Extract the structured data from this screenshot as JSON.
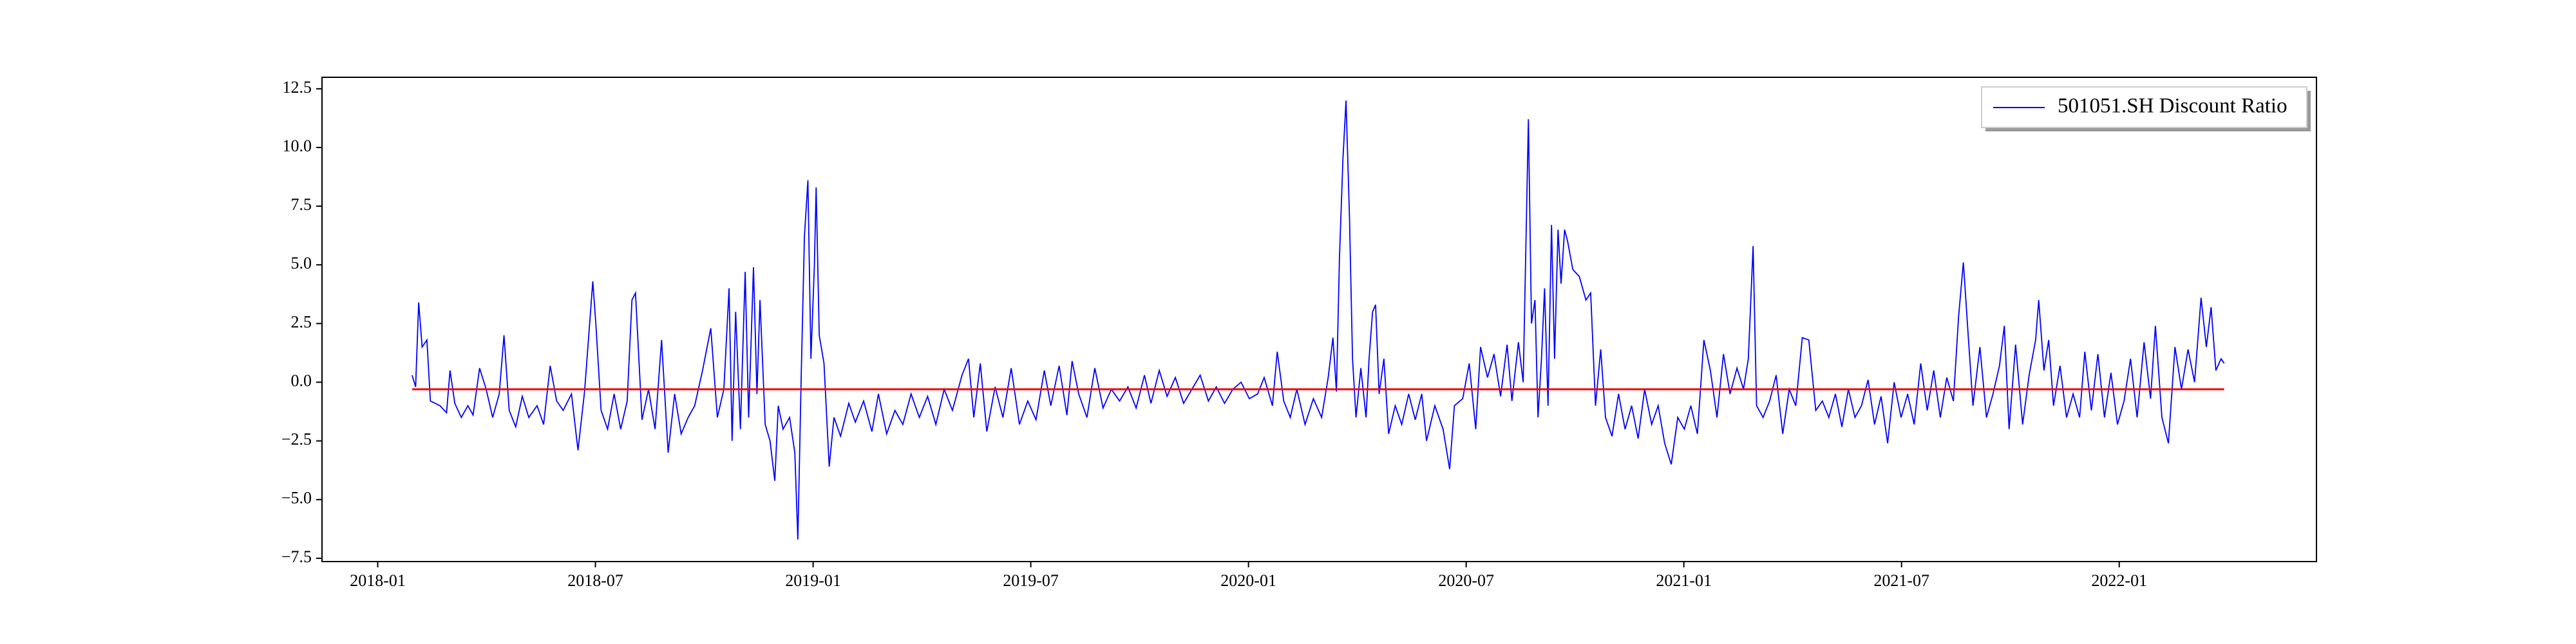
{
  "chart_data": {
    "type": "line",
    "x": [
      2018.079,
      2018.087,
      2018.094,
      2018.102,
      2018.113,
      2018.121,
      2018.143,
      2018.158,
      2018.166,
      2018.177,
      2018.192,
      2018.207,
      2018.219,
      2018.234,
      2018.249,
      2018.264,
      2018.279,
      2018.29,
      2018.302,
      2018.317,
      2018.332,
      2018.347,
      2018.366,
      2018.381,
      2018.396,
      2018.411,
      2018.426,
      2018.445,
      2018.46,
      2018.475,
      2018.494,
      2018.501,
      2018.513,
      2018.528,
      2018.543,
      2018.558,
      2018.573,
      2018.584,
      2018.592,
      2018.607,
      2018.622,
      2018.637,
      2018.652,
      2018.667,
      2018.682,
      2018.697,
      2018.713,
      2018.728,
      2018.746,
      2018.765,
      2018.78,
      2018.795,
      2018.807,
      2018.814,
      2018.822,
      2018.833,
      2018.844,
      2018.852,
      2018.863,
      2018.871,
      2018.878,
      2018.89,
      2018.901,
      2018.912,
      2018.92,
      2018.931,
      2018.946,
      2018.958,
      2018.965,
      2018.973,
      2018.98,
      2018.988,
      2018.995,
      2019.003,
      2019.007,
      2019.014,
      2019.025,
      2019.037,
      2019.048,
      2019.063,
      2019.082,
      2019.097,
      2019.116,
      2019.135,
      2019.15,
      2019.169,
      2019.188,
      2019.206,
      2019.225,
      2019.244,
      2019.263,
      2019.282,
      2019.301,
      2019.32,
      2019.342,
      2019.357,
      2019.369,
      2019.384,
      2019.399,
      2019.418,
      2019.436,
      2019.455,
      2019.474,
      2019.493,
      2019.512,
      2019.531,
      2019.546,
      2019.565,
      2019.583,
      2019.595,
      2019.61,
      2019.629,
      2019.647,
      2019.666,
      2019.685,
      2019.704,
      2019.723,
      2019.742,
      2019.761,
      2019.776,
      2019.795,
      2019.813,
      2019.832,
      2019.851,
      2019.87,
      2019.889,
      2019.908,
      2019.926,
      2019.945,
      2019.964,
      2019.983,
      2020.002,
      2020.021,
      2020.036,
      2020.055,
      2020.066,
      2020.081,
      2020.096,
      2020.111,
      2020.13,
      2020.149,
      2020.168,
      2020.183,
      2020.194,
      2020.202,
      2020.209,
      2020.217,
      2020.224,
      2020.232,
      2020.239,
      2020.247,
      2020.258,
      2020.27,
      2020.277,
      2020.285,
      2020.292,
      2020.3,
      2020.311,
      2020.322,
      2020.337,
      2020.352,
      2020.368,
      2020.383,
      2020.398,
      2020.409,
      2020.428,
      2020.447,
      2020.462,
      2020.473,
      2020.492,
      2020.507,
      2020.522,
      2020.533,
      2020.549,
      2020.564,
      2020.579,
      2020.594,
      2020.605,
      2020.62,
      2020.631,
      2020.643,
      2020.65,
      2020.658,
      2020.665,
      2020.673,
      2020.68,
      2020.688,
      2020.696,
      2020.703,
      2020.711,
      2020.718,
      2020.726,
      2020.733,
      2020.745,
      2020.76,
      2020.775,
      2020.786,
      2020.797,
      2020.809,
      2020.82,
      2020.835,
      2020.85,
      2020.865,
      2020.88,
      2020.895,
      2020.91,
      2020.926,
      2020.941,
      2020.956,
      2020.971,
      2020.986,
      2021.001,
      2021.016,
      2021.031,
      2021.046,
      2021.061,
      2021.076,
      2021.091,
      2021.106,
      2021.122,
      2021.137,
      2021.148,
      2021.159,
      2021.167,
      2021.182,
      2021.197,
      2021.212,
      2021.227,
      2021.242,
      2021.257,
      2021.272,
      2021.287,
      2021.303,
      2021.318,
      2021.333,
      2021.348,
      2021.363,
      2021.378,
      2021.393,
      2021.408,
      2021.423,
      2021.438,
      2021.453,
      2021.468,
      2021.483,
      2021.499,
      2021.514,
      2021.529,
      2021.544,
      2021.559,
      2021.574,
      2021.589,
      2021.604,
      2021.619,
      2021.631,
      2021.642,
      2021.653,
      2021.664,
      2021.68,
      2021.695,
      2021.71,
      2021.725,
      2021.736,
      2021.747,
      2021.762,
      2021.778,
      2021.793,
      2021.808,
      2021.815,
      2021.827,
      2021.838,
      2021.849,
      2021.864,
      2021.879,
      2021.894,
      2021.909,
      2021.921,
      2021.936,
      2021.951,
      2021.966,
      2021.981,
      2021.996,
      2022.011,
      2022.026,
      2022.041,
      2022.057,
      2022.072,
      2022.083,
      2022.098,
      2022.113,
      2022.128,
      2022.143,
      2022.158,
      2022.173,
      2022.188,
      2022.2,
      2022.211,
      2022.222,
      2022.234,
      2022.241
    ],
    "series": [
      {
        "name": "501051.SH Discount Ratio",
        "color": "#0000ff",
        "values": [
          0.3,
          -0.2,
          3.4,
          1.5,
          1.8,
          -0.8,
          -1.0,
          -1.3,
          0.5,
          -0.9,
          -1.5,
          -1.0,
          -1.4,
          0.6,
          -0.3,
          -1.5,
          -0.5,
          2.0,
          -1.2,
          -1.9,
          -0.6,
          -1.5,
          -1.0,
          -1.8,
          0.7,
          -0.8,
          -1.2,
          -0.5,
          -2.9,
          -0.4,
          4.3,
          2.5,
          -1.2,
          -2.0,
          -0.5,
          -2.0,
          -0.8,
          3.5,
          3.8,
          -1.6,
          -0.3,
          -2.0,
          1.8,
          -3.0,
          -0.5,
          -2.2,
          -1.5,
          -1.0,
          0.5,
          2.3,
          -1.5,
          -0.3,
          4.0,
          -2.5,
          3.0,
          -2.0,
          4.7,
          -1.5,
          4.9,
          -0.5,
          3.5,
          -1.8,
          -2.5,
          -4.2,
          -1.0,
          -2.0,
          -1.5,
          -3.0,
          -6.7,
          0.5,
          6.2,
          8.6,
          1.0,
          5.0,
          8.3,
          2.0,
          0.8,
          -3.6,
          -1.5,
          -2.3,
          -0.9,
          -1.7,
          -0.8,
          -2.1,
          -0.5,
          -2.2,
          -1.2,
          -1.8,
          -0.5,
          -1.5,
          -0.6,
          -1.8,
          -0.3,
          -1.2,
          0.3,
          1.0,
          -1.5,
          0.8,
          -2.1,
          -0.2,
          -1.5,
          0.6,
          -1.8,
          -0.8,
          -1.6,
          0.5,
          -1.0,
          0.7,
          -1.4,
          0.9,
          -0.5,
          -1.5,
          0.6,
          -1.1,
          -0.3,
          -0.8,
          -0.2,
          -1.1,
          0.3,
          -0.9,
          0.5,
          -0.6,
          0.2,
          -0.9,
          -0.3,
          0.3,
          -0.8,
          -0.2,
          -0.9,
          -0.3,
          0.0,
          -0.7,
          -0.5,
          0.2,
          -1.0,
          1.3,
          -0.8,
          -1.5,
          -0.3,
          -1.8,
          -0.7,
          -1.5,
          0.2,
          1.9,
          -0.4,
          5.3,
          9.5,
          12.0,
          7.0,
          1.0,
          -1.5,
          0.6,
          -1.5,
          1.0,
          3.0,
          3.3,
          -0.5,
          1.0,
          -2.2,
          -1.0,
          -1.8,
          -0.5,
          -1.6,
          -0.5,
          -2.5,
          -1.0,
          -2.0,
          -3.7,
          -1.0,
          -0.7,
          0.8,
          -2.0,
          1.5,
          0.2,
          1.2,
          -0.6,
          1.6,
          -0.8,
          1.7,
          0.0,
          11.2,
          2.5,
          3.5,
          -1.5,
          1.0,
          4.0,
          -1.0,
          6.7,
          1.0,
          6.5,
          4.2,
          6.5,
          6.0,
          4.8,
          4.5,
          3.5,
          3.8,
          -1.0,
          1.4,
          -1.5,
          -2.3,
          -0.5,
          -2.0,
          -1.0,
          -2.4,
          -0.3,
          -1.8,
          -1.0,
          -2.6,
          -3.5,
          -1.5,
          -2.0,
          -1.0,
          -2.2,
          1.8,
          0.5,
          -1.5,
          1.2,
          -0.5,
          0.6,
          -0.3,
          1.0,
          5.8,
          -1.0,
          -1.5,
          -0.8,
          0.3,
          -2.2,
          -0.3,
          -1.0,
          1.9,
          1.8,
          -1.2,
          -0.8,
          -1.5,
          -0.5,
          -1.9,
          -0.3,
          -1.5,
          -1.0,
          0.1,
          -1.8,
          -0.6,
          -2.6,
          0.0,
          -1.5,
          -0.5,
          -1.8,
          0.8,
          -1.2,
          0.5,
          -1.5,
          0.2,
          -0.8,
          2.8,
          5.1,
          2.0,
          -1.0,
          1.5,
          -1.5,
          -0.5,
          0.7,
          2.4,
          -2.0,
          1.6,
          -1.8,
          0.3,
          1.8,
          3.5,
          0.5,
          1.8,
          -1.0,
          0.7,
          -1.5,
          -0.5,
          -1.5,
          1.3,
          -1.2,
          1.2,
          -1.5,
          0.4,
          -1.8,
          -0.8,
          1.0,
          -1.5,
          1.7,
          -0.7,
          2.4,
          -1.5,
          -2.6,
          1.5,
          -0.3,
          1.4,
          0.0,
          3.6,
          1.5,
          3.2,
          0.5,
          1.0,
          0.8
        ]
      }
    ],
    "hline": {
      "value": -0.3,
      "color": "#ff0000"
    },
    "xlim": [
      2017.872,
      2022.453
    ],
    "xticks": [
      {
        "value": 2018.0,
        "label": "2018-01"
      },
      {
        "value": 2018.5,
        "label": "2018-07"
      },
      {
        "value": 2019.0,
        "label": "2019-01"
      },
      {
        "value": 2019.5,
        "label": "2019-07"
      },
      {
        "value": 2020.0,
        "label": "2020-01"
      },
      {
        "value": 2020.5,
        "label": "2020-07"
      },
      {
        "value": 2021.0,
        "label": "2021-01"
      },
      {
        "value": 2021.5,
        "label": "2021-07"
      },
      {
        "value": 2022.0,
        "label": "2022-01"
      }
    ],
    "ylim": [
      -7.64,
      12.99
    ],
    "yticks": [
      {
        "value": -7.5,
        "label": "−7.5"
      },
      {
        "value": -5,
        "label": "−5.0"
      },
      {
        "value": -2.5,
        "label": "−2.5"
      },
      {
        "value": 0,
        "label": "0.0"
      },
      2.5,
      {
        "value": 5,
        "label": "5.0"
      },
      7.5,
      {
        "value": 10,
        "label": "10.0"
      },
      12.5
    ],
    "legend": "upper right"
  }
}
